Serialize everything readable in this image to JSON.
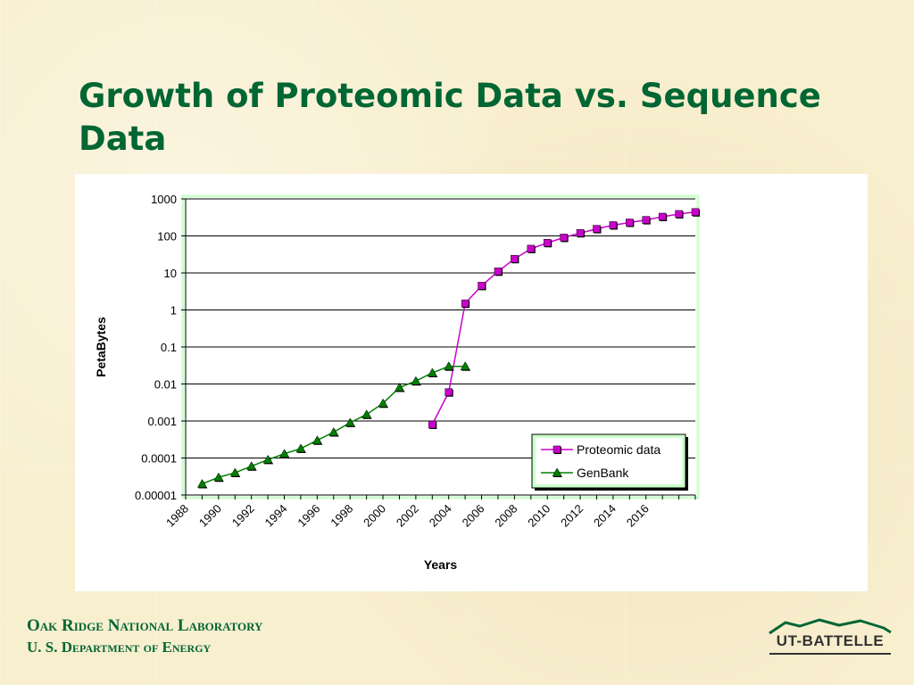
{
  "slide": {
    "title": "Growth of Proteomic Data vs. Sequence Data"
  },
  "footer": {
    "org_line1": "Oak Ridge National Laboratory",
    "org_line2": "U. S. Department of Energy",
    "logo_text": "UT-BATTELLE"
  },
  "colors": {
    "title": "#006633",
    "proteomic": "#cc00cc",
    "genbank": "#008000",
    "legend_bg": "#ccffcc",
    "plot_border": "#ccffcc"
  },
  "chart_data": {
    "type": "line",
    "xlabel": "Years",
    "ylabel": "PetaBytes",
    "y_scale": "log",
    "ylim": [
      1e-05,
      1000
    ],
    "xlim": [
      1988,
      2019
    ],
    "y_ticks": [
      "1000",
      "100",
      "10",
      "1",
      "0.1",
      "0.01",
      "0.001",
      "0.0001",
      "0.00001"
    ],
    "x_ticks": [
      "1988",
      "1990",
      "1992",
      "1994",
      "1996",
      "1998",
      "2000",
      "2002",
      "2004",
      "2006",
      "2008",
      "2010",
      "2012",
      "2014",
      "2016"
    ],
    "grid": "horizontal",
    "legend_position": "bottom-right",
    "series": [
      {
        "name": "Proteomic data",
        "marker": "square",
        "x": [
          2003,
          2004,
          2005,
          2006,
          2007,
          2008,
          2009,
          2010,
          2011,
          2012,
          2013,
          2014,
          2015,
          2016,
          2017,
          2018,
          2019
        ],
        "y": [
          0.0008,
          0.006,
          1.5,
          4.5,
          11,
          24,
          45,
          65,
          90,
          120,
          155,
          195,
          230,
          270,
          330,
          390,
          440
        ]
      },
      {
        "name": "GenBank",
        "marker": "triangle",
        "x": [
          1989,
          1990,
          1991,
          1992,
          1993,
          1994,
          1995,
          1996,
          1997,
          1998,
          1999,
          2000,
          2001,
          2002,
          2003,
          2004,
          2005
        ],
        "y": [
          2e-05,
          3e-05,
          4e-05,
          6e-05,
          9e-05,
          0.00013,
          0.00018,
          0.0003,
          0.0005,
          0.0009,
          0.0015,
          0.003,
          0.008,
          0.012,
          0.02,
          0.03,
          0.03
        ]
      }
    ]
  }
}
